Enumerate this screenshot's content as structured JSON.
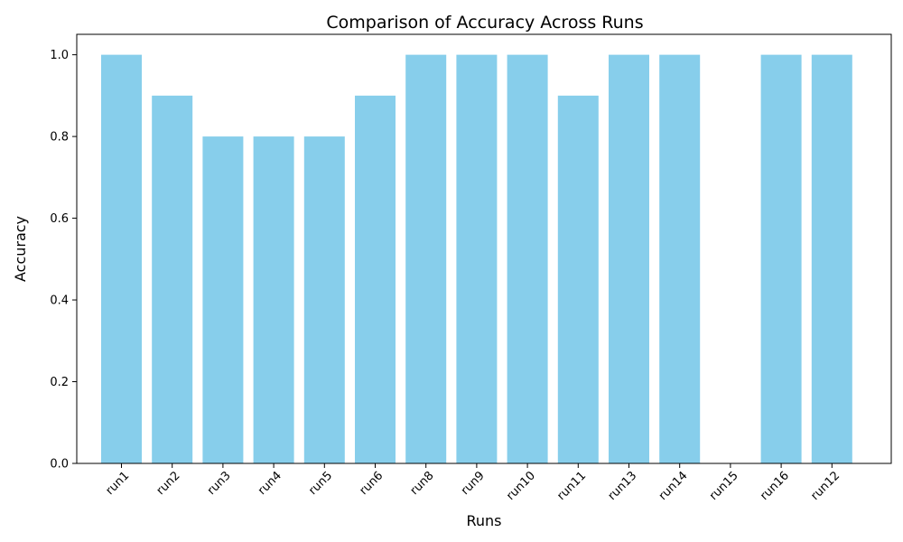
{
  "chart_data": {
    "type": "bar",
    "title": "Comparison of Accuracy Across Runs",
    "xlabel": "Runs",
    "ylabel": "Accuracy",
    "categories": [
      "run1",
      "run2",
      "run3",
      "run4",
      "run5",
      "run6",
      "run8",
      "run9",
      "run10",
      "run11",
      "run13",
      "run14",
      "run15",
      "run16",
      "run12"
    ],
    "values": [
      1.0,
      0.9,
      0.8,
      0.8,
      0.8,
      0.9,
      1.0,
      1.0,
      1.0,
      0.9,
      1.0,
      1.0,
      0.0,
      1.0,
      1.0
    ],
    "ylim": [
      0,
      1.05
    ],
    "yticks": [
      0.0,
      0.2,
      0.4,
      0.6,
      0.8,
      1.0
    ],
    "ytick_labels": [
      "0.0",
      "0.2",
      "0.4",
      "0.6",
      "0.8",
      "1.0"
    ],
    "bar_color": "#87ceeb",
    "grid": false,
    "legend": "none"
  }
}
